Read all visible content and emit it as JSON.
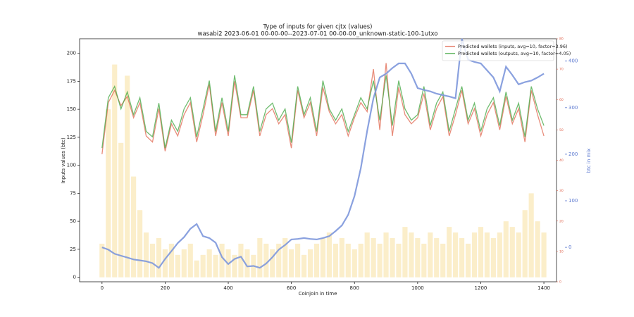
{
  "chart_data": {
    "type": "line",
    "title": "Type of inputs for given cjtx (values)",
    "subtitle": "wasabi2 2023-06-01 00-00-00--2023-07-01 00-00-00_unknown-static-100-1utxo",
    "xlabel": "Coinjoin in time",
    "ylabel": "Inputs values (btc)",
    "y2label": "btc in mix",
    "xlim": [
      -71,
      1440
    ],
    "xticks": [
      0,
      200,
      400,
      600,
      800,
      1000,
      1200,
      1400
    ],
    "ylim": [
      -4,
      213
    ],
    "yticks": [
      0,
      25,
      50,
      75,
      100,
      125,
      150,
      175,
      200
    ],
    "y2lim": [
      -74,
      448
    ],
    "y2ticks": [
      0,
      100,
      200,
      300,
      400
    ],
    "y3lim": [
      0,
      80
    ],
    "y3ticks": [
      0,
      10,
      20,
      30,
      40,
      50,
      60,
      70,
      80
    ],
    "legend": "upper right",
    "x": [
      0,
      20,
      40,
      60,
      80,
      100,
      120,
      140,
      160,
      180,
      200,
      220,
      240,
      260,
      280,
      300,
      320,
      340,
      360,
      380,
      400,
      420,
      440,
      460,
      480,
      500,
      520,
      540,
      560,
      580,
      600,
      620,
      640,
      660,
      680,
      700,
      720,
      740,
      760,
      780,
      800,
      820,
      840,
      860,
      880,
      900,
      920,
      940,
      960,
      980,
      1000,
      1020,
      1040,
      1060,
      1080,
      1100,
      1120,
      1140,
      1160,
      1180,
      1200,
      1220,
      1240,
      1260,
      1280,
      1300,
      1320,
      1340,
      1360,
      1380,
      1400
    ],
    "bars": {
      "color": "#f6d98a",
      "values": [
        30,
        150,
        190,
        120,
        180,
        90,
        60,
        40,
        30,
        35,
        25,
        30,
        20,
        25,
        30,
        15,
        20,
        25,
        20,
        30,
        25,
        20,
        30,
        25,
        20,
        35,
        30,
        25,
        30,
        35,
        25,
        30,
        20,
        25,
        30,
        35,
        40,
        30,
        35,
        30,
        25,
        30,
        40,
        35,
        30,
        40,
        35,
        30,
        45,
        40,
        35,
        30,
        40,
        35,
        30,
        45,
        40,
        35,
        30,
        40,
        45,
        40,
        35,
        40,
        50,
        45,
        40,
        60,
        75,
        50,
        40
      ]
    },
    "series": [
      {
        "name": "Predicted wallets (inputs, avg=10, factor=3.96)",
        "color": "#e0654e",
        "axis": "y3",
        "values": [
          42,
          59,
          63,
          58,
          61,
          54,
          59,
          48,
          46,
          57,
          43,
          52,
          48,
          55,
          59,
          46,
          55,
          65,
          48,
          59,
          48,
          66,
          54,
          54,
          63,
          48,
          55,
          57,
          52,
          55,
          44,
          63,
          54,
          59,
          48,
          64,
          56,
          52,
          55,
          48,
          54,
          59,
          56,
          70,
          50,
          72,
          48,
          64,
          55,
          52,
          54,
          62,
          50,
          57,
          61,
          48,
          55,
          63,
          52,
          57,
          48,
          55,
          59,
          50,
          61,
          52,
          57,
          46,
          63,
          55,
          48
        ]
      },
      {
        "name": "Predicted wallets (outputs, avg=10, factor=4.05)",
        "color": "#3fa63f",
        "axis": "y3",
        "values": [
          44,
          60.6,
          64.3,
          56.9,
          62.5,
          55,
          60.6,
          49.5,
          47.7,
          58.8,
          44,
          53.2,
          49.5,
          56.9,
          60.6,
          47.7,
          56.9,
          66.2,
          49.5,
          60.6,
          49.5,
          68,
          55,
          55,
          64.3,
          49.5,
          56.9,
          58.8,
          53.2,
          56.9,
          45.8,
          64.3,
          55,
          60.6,
          49.5,
          66.2,
          56.9,
          53.2,
          56.9,
          49.5,
          55,
          60.6,
          56.9,
          66.2,
          53.2,
          68,
          51.4,
          66.2,
          56.9,
          53.2,
          55,
          64.3,
          51.4,
          58.8,
          62.5,
          49.5,
          56.9,
          64.3,
          53.2,
          58.8,
          49.5,
          56.9,
          60.6,
          51.4,
          62.5,
          53.2,
          58.8,
          47.7,
          64.3,
          56.9,
          51.4
        ]
      },
      {
        "color": "#7d97dc",
        "axis": "y2",
        "values": [
          0,
          -5,
          -14,
          -18,
          -22,
          -26,
          -28,
          -30,
          -34,
          -44,
          -25,
          -8,
          9,
          22,
          40,
          50,
          24,
          20,
          10,
          -21,
          -36,
          -25,
          -20,
          -41,
          -40,
          -44,
          -35,
          -21,
          -5,
          5,
          17,
          18,
          20,
          18,
          17,
          20,
          24,
          35,
          47,
          70,
          110,
          170,
          250,
          320,
          365,
          373,
          385,
          395,
          395,
          373,
          342,
          338,
          335,
          330,
          327,
          324,
          320,
          448,
          403,
          398,
          395,
          380,
          365,
          335,
          388,
          370,
          350,
          355,
          358,
          365,
          373
        ]
      }
    ]
  }
}
